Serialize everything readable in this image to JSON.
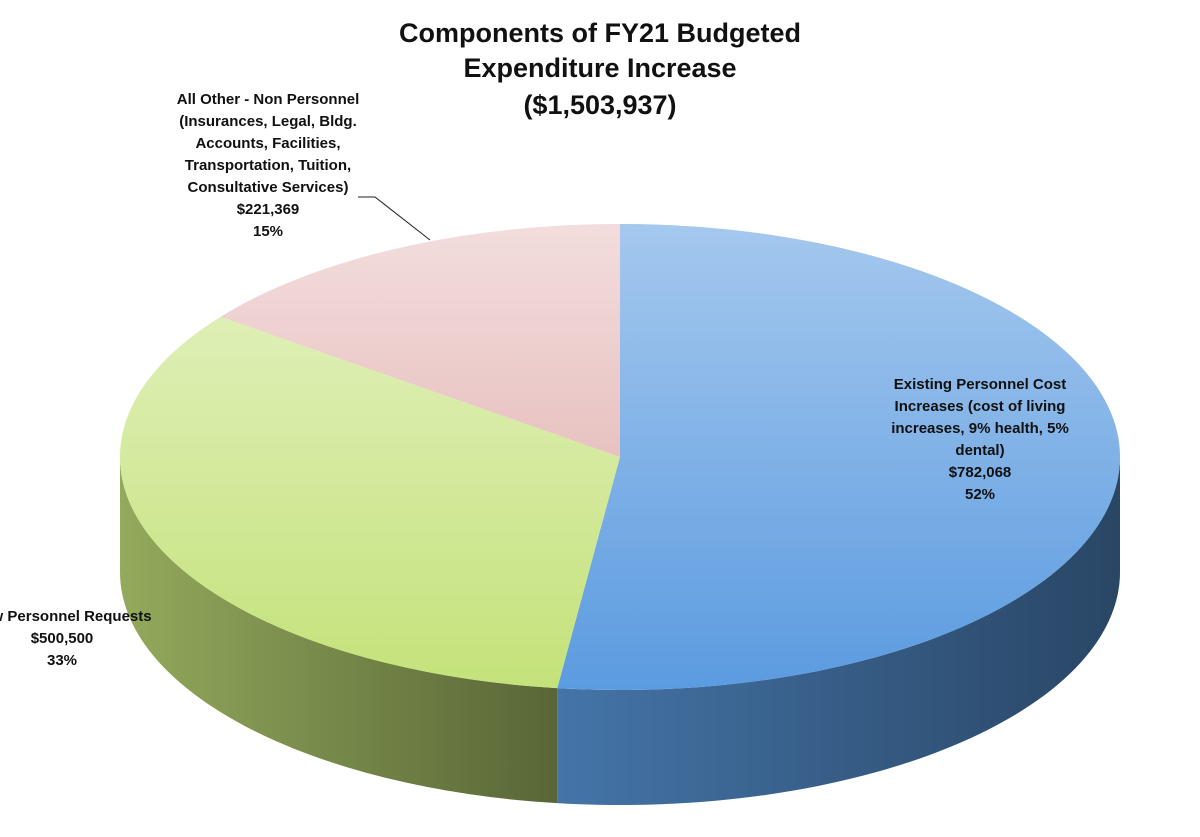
{
  "chart_data": {
    "type": "pie",
    "title": "Components of FY21 Budgeted Expenditure Increase",
    "subtitle": "($1,503,937)",
    "categories": [
      "Existing Personnel Cost Increases (cost of living increases, 9% health, 5% dental)",
      "New Personnel Requests",
      "All Other - Non Personnel (Insurances, Legal, Bldg. Accounts, Facilities, Transportation, Tuition, Consultative Services)"
    ],
    "values": [
      782068,
      500500,
      221369
    ],
    "value_labels": [
      "$782,068",
      "$500,500",
      "$221,369"
    ],
    "percent_labels": [
      "52%",
      "33%",
      "15%"
    ],
    "colors": [
      "#5b9be0",
      "#c4e27a",
      "#e8c2c1"
    ]
  }
}
